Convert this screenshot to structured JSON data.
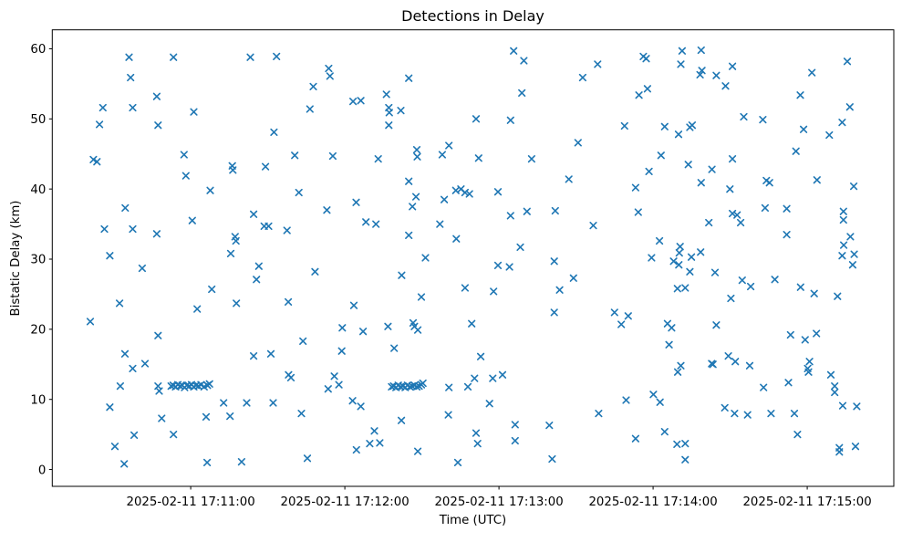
{
  "chart_data": {
    "type": "scatter",
    "title": "Detections in Delay",
    "xlabel": "Time (UTC)",
    "ylabel": "Bistatic Delay (km)",
    "marker": "x",
    "marker_color": "#1f77b4",
    "grid": false,
    "legend": "none",
    "x_time_origin": "2025-02-11 17:10:00",
    "xlim_seconds": [
      6.1,
      333.7
    ],
    "ylim": [
      -2.4,
      62.7
    ],
    "x_ticks": [
      {
        "seconds": 60,
        "label": "2025-02-11 17:11:00"
      },
      {
        "seconds": 120,
        "label": "2025-02-11 17:12:00"
      },
      {
        "seconds": 180,
        "label": "2025-02-11 17:13:00"
      },
      {
        "seconds": 240,
        "label": "2025-02-11 17:14:00"
      },
      {
        "seconds": 300,
        "label": "2025-02-11 17:15:00"
      }
    ],
    "y_ticks": [
      0,
      10,
      20,
      30,
      40,
      50,
      60
    ],
    "points_format": [
      "seconds_after_17:10:00_UTC",
      "bistatic_delay_km"
    ],
    "points": [
      [
        36.0,
        58.8
      ],
      [
        53.3,
        58.8
      ],
      [
        36.6,
        55.9
      ],
      [
        46.8,
        53.2
      ],
      [
        25.8,
        51.6
      ],
      [
        37.4,
        51.6
      ],
      [
        61.2,
        51.0
      ],
      [
        24.5,
        49.2
      ],
      [
        47.3,
        49.1
      ],
      [
        22.1,
        44.2
      ],
      [
        23.5,
        43.9
      ],
      [
        57.4,
        44.9
      ],
      [
        58.1,
        41.9
      ],
      [
        34.5,
        37.3
      ],
      [
        60.6,
        35.5
      ],
      [
        26.4,
        34.3
      ],
      [
        37.4,
        34.3
      ],
      [
        46.8,
        33.6
      ],
      [
        28.5,
        30.5
      ],
      [
        41.1,
        28.7
      ],
      [
        32.3,
        23.7
      ],
      [
        20.9,
        21.1
      ],
      [
        47.3,
        19.1
      ],
      [
        34.4,
        16.5
      ],
      [
        42.2,
        15.1
      ],
      [
        37.4,
        14.4
      ],
      [
        32.6,
        11.9
      ],
      [
        47.3,
        11.9
      ],
      [
        47.7,
        11.2
      ],
      [
        28.5,
        8.9
      ],
      [
        48.7,
        7.3
      ],
      [
        38.0,
        4.9
      ],
      [
        53.3,
        5.0
      ],
      [
        30.5,
        3.3
      ],
      [
        34.1,
        0.8
      ],
      [
        52.4,
        11.9
      ],
      [
        53.2,
        12.0
      ],
      [
        54.1,
        11.8
      ],
      [
        55.0,
        12.1
      ],
      [
        55.9,
        11.9
      ],
      [
        56.7,
        12.0
      ],
      [
        57.6,
        11.7
      ],
      [
        58.5,
        12.0
      ],
      [
        59.4,
        11.9
      ],
      [
        60.3,
        12.1
      ],
      [
        61.2,
        11.8
      ],
      [
        62.1,
        12.0
      ],
      [
        63.0,
        11.9
      ],
      [
        64.0,
        12.1
      ],
      [
        65.2,
        11.8
      ],
      [
        66.5,
        12.0
      ],
      [
        67.3,
        12.2
      ],
      [
        83.2,
        58.8
      ],
      [
        93.4,
        58.9
      ],
      [
        113.7,
        57.2
      ],
      [
        114.2,
        56.1
      ],
      [
        107.7,
        54.6
      ],
      [
        106.4,
        51.4
      ],
      [
        92.4,
        48.1
      ],
      [
        100.5,
        44.8
      ],
      [
        115.3,
        44.7
      ],
      [
        76.2,
        43.3
      ],
      [
        76.4,
        42.7
      ],
      [
        89.1,
        43.2
      ],
      [
        67.6,
        39.8
      ],
      [
        102.1,
        39.5
      ],
      [
        113.0,
        37.0
      ],
      [
        84.5,
        36.4
      ],
      [
        88.6,
        34.7
      ],
      [
        90.3,
        34.7
      ],
      [
        97.5,
        34.1
      ],
      [
        77.3,
        33.2
      ],
      [
        77.6,
        32.6
      ],
      [
        75.6,
        30.8
      ],
      [
        86.5,
        29.0
      ],
      [
        108.4,
        28.2
      ],
      [
        85.6,
        27.1
      ],
      [
        68.2,
        25.7
      ],
      [
        62.5,
        22.9
      ],
      [
        77.8,
        23.7
      ],
      [
        98.0,
        23.9
      ],
      [
        103.7,
        18.3
      ],
      [
        84.5,
        16.2
      ],
      [
        91.2,
        16.5
      ],
      [
        98.1,
        13.5
      ],
      [
        99.0,
        13.1
      ],
      [
        115.9,
        13.3
      ],
      [
        117.7,
        12.1
      ],
      [
        113.5,
        11.5
      ],
      [
        72.8,
        9.5
      ],
      [
        81.8,
        9.5
      ],
      [
        92.1,
        9.5
      ],
      [
        66.0,
        7.5
      ],
      [
        75.3,
        7.6
      ],
      [
        103.1,
        8.0
      ],
      [
        66.4,
        1.0
      ],
      [
        79.8,
        1.1
      ],
      [
        105.4,
        1.6
      ],
      [
        144.9,
        55.8
      ],
      [
        123.2,
        52.5
      ],
      [
        126.2,
        52.6
      ],
      [
        136.2,
        53.5
      ],
      [
        137.1,
        51.6
      ],
      [
        137.3,
        50.9
      ],
      [
        141.8,
        51.2
      ],
      [
        171.1,
        50.0
      ],
      [
        137.1,
        49.1
      ],
      [
        148.0,
        45.6
      ],
      [
        148.2,
        44.6
      ],
      [
        160.5,
        46.2
      ],
      [
        157.9,
        44.9
      ],
      [
        133.0,
        44.3
      ],
      [
        172.1,
        44.4
      ],
      [
        144.9,
        41.1
      ],
      [
        147.7,
        38.9
      ],
      [
        146.3,
        37.5
      ],
      [
        124.4,
        38.1
      ],
      [
        158.7,
        38.5
      ],
      [
        163.2,
        39.8
      ],
      [
        165.2,
        40.0
      ],
      [
        166.8,
        39.5
      ],
      [
        168.5,
        39.3
      ],
      [
        128.2,
        35.3
      ],
      [
        132.1,
        35.0
      ],
      [
        157.0,
        35.0
      ],
      [
        144.9,
        33.4
      ],
      [
        163.4,
        32.9
      ],
      [
        151.4,
        30.2
      ],
      [
        142.1,
        27.7
      ],
      [
        166.8,
        25.9
      ],
      [
        149.8,
        24.6
      ],
      [
        123.5,
        23.4
      ],
      [
        119.0,
        20.2
      ],
      [
        127.1,
        19.7
      ],
      [
        136.8,
        20.4
      ],
      [
        146.6,
        20.9
      ],
      [
        147.1,
        20.4
      ],
      [
        148.4,
        19.9
      ],
      [
        169.4,
        20.8
      ],
      [
        139.2,
        17.3
      ],
      [
        172.9,
        16.1
      ],
      [
        118.8,
        16.9
      ],
      [
        160.5,
        11.7
      ],
      [
        167.9,
        11.8
      ],
      [
        170.5,
        13.0
      ],
      [
        123.0,
        9.8
      ],
      [
        126.2,
        9.0
      ],
      [
        142.0,
        7.0
      ],
      [
        160.3,
        7.8
      ],
      [
        131.5,
        5.5
      ],
      [
        129.7,
        3.7
      ],
      [
        133.6,
        3.8
      ],
      [
        124.5,
        2.8
      ],
      [
        148.4,
        2.6
      ],
      [
        171.1,
        5.2
      ],
      [
        171.7,
        3.7
      ],
      [
        164.0,
        1.0
      ],
      [
        138.2,
        11.8
      ],
      [
        139.0,
        11.9
      ],
      [
        139.9,
        11.7
      ],
      [
        140.8,
        12.0
      ],
      [
        141.7,
        11.8
      ],
      [
        142.6,
        11.9
      ],
      [
        143.5,
        11.7
      ],
      [
        144.4,
        12.0
      ],
      [
        145.3,
        11.8
      ],
      [
        146.2,
        11.9
      ],
      [
        147.1,
        12.0
      ],
      [
        148.0,
        11.8
      ],
      [
        148.9,
        11.9
      ],
      [
        149.8,
        12.1
      ],
      [
        150.4,
        12.3
      ],
      [
        185.7,
        59.7
      ],
      [
        189.7,
        58.3
      ],
      [
        218.4,
        57.8
      ],
      [
        212.6,
        55.9
      ],
      [
        188.9,
        53.7
      ],
      [
        184.5,
        49.8
      ],
      [
        228.9,
        49.0
      ],
      [
        210.8,
        46.6
      ],
      [
        192.7,
        44.3
      ],
      [
        207.2,
        41.4
      ],
      [
        179.6,
        39.6
      ],
      [
        190.9,
        36.8
      ],
      [
        184.5,
        36.2
      ],
      [
        201.9,
        36.9
      ],
      [
        216.7,
        34.8
      ],
      [
        188.3,
        31.7
      ],
      [
        179.6,
        29.1
      ],
      [
        184.1,
        28.9
      ],
      [
        201.5,
        29.7
      ],
      [
        209.0,
        27.3
      ],
      [
        177.9,
        25.4
      ],
      [
        203.6,
        25.6
      ],
      [
        201.5,
        22.4
      ],
      [
        225.0,
        22.4
      ],
      [
        230.3,
        21.9
      ],
      [
        227.6,
        20.7
      ],
      [
        177.6,
        13.0
      ],
      [
        181.4,
        13.5
      ],
      [
        176.3,
        9.4
      ],
      [
        229.5,
        9.9
      ],
      [
        218.8,
        8.0
      ],
      [
        186.3,
        6.4
      ],
      [
        199.6,
        6.3
      ],
      [
        186.3,
        4.1
      ],
      [
        200.7,
        1.5
      ],
      [
        251.3,
        59.7
      ],
      [
        258.7,
        59.8
      ],
      [
        236.2,
        58.9
      ],
      [
        237.3,
        58.6
      ],
      [
        250.8,
        57.8
      ],
      [
        259.0,
        56.9
      ],
      [
        258.3,
        56.3
      ],
      [
        264.6,
        56.2
      ],
      [
        270.9,
        57.5
      ],
      [
        268.2,
        54.7
      ],
      [
        237.8,
        54.3
      ],
      [
        234.5,
        53.4
      ],
      [
        275.3,
        50.3
      ],
      [
        282.7,
        49.9
      ],
      [
        244.5,
        48.9
      ],
      [
        254.3,
        48.8
      ],
      [
        255.2,
        49.1
      ],
      [
        249.9,
        47.8
      ],
      [
        243.1,
        44.8
      ],
      [
        270.9,
        44.3
      ],
      [
        253.7,
        43.5
      ],
      [
        238.4,
        42.5
      ],
      [
        262.9,
        42.8
      ],
      [
        258.7,
        40.9
      ],
      [
        269.9,
        40.0
      ],
      [
        233.2,
        40.2
      ],
      [
        284.1,
        41.2
      ],
      [
        285.3,
        40.9
      ],
      [
        283.6,
        37.3
      ],
      [
        234.2,
        36.7
      ],
      [
        270.9,
        36.5
      ],
      [
        272.7,
        36.3
      ],
      [
        274.1,
        35.2
      ],
      [
        261.7,
        35.2
      ],
      [
        242.5,
        32.6
      ],
      [
        239.4,
        30.2
      ],
      [
        250.2,
        30.9
      ],
      [
        248.0,
        29.7
      ],
      [
        250.0,
        29.2
      ],
      [
        254.9,
        30.3
      ],
      [
        258.5,
        31.0
      ],
      [
        250.5,
        31.8
      ],
      [
        254.3,
        28.2
      ],
      [
        264.1,
        28.1
      ],
      [
        274.7,
        27.0
      ],
      [
        278.0,
        26.1
      ],
      [
        287.4,
        27.1
      ],
      [
        249.5,
        25.8
      ],
      [
        252.5,
        25.9
      ],
      [
        270.3,
        24.4
      ],
      [
        245.6,
        20.8
      ],
      [
        247.2,
        20.2
      ],
      [
        264.6,
        20.6
      ],
      [
        246.2,
        17.8
      ],
      [
        269.3,
        16.2
      ],
      [
        272.0,
        15.4
      ],
      [
        262.8,
        15.1
      ],
      [
        263.3,
        15.0
      ],
      [
        277.6,
        14.8
      ],
      [
        250.8,
        14.8
      ],
      [
        249.6,
        13.9
      ],
      [
        283.0,
        11.7
      ],
      [
        240.1,
        10.7
      ],
      [
        242.7,
        9.6
      ],
      [
        267.9,
        8.8
      ],
      [
        271.7,
        8.0
      ],
      [
        276.8,
        7.8
      ],
      [
        285.9,
        8.0
      ],
      [
        244.5,
        5.4
      ],
      [
        233.2,
        4.4
      ],
      [
        249.3,
        3.6
      ],
      [
        252.5,
        3.7
      ],
      [
        252.5,
        1.4
      ],
      [
        315.6,
        58.2
      ],
      [
        301.8,
        56.6
      ],
      [
        297.3,
        53.4
      ],
      [
        316.6,
        51.7
      ],
      [
        313.6,
        49.5
      ],
      [
        298.6,
        48.5
      ],
      [
        308.6,
        47.7
      ],
      [
        295.6,
        45.4
      ],
      [
        303.8,
        41.3
      ],
      [
        318.1,
        40.4
      ],
      [
        292.0,
        37.2
      ],
      [
        314.1,
        36.8
      ],
      [
        314.1,
        35.6
      ],
      [
        292.0,
        33.5
      ],
      [
        316.8,
        33.2
      ],
      [
        314.2,
        32.0
      ],
      [
        318.3,
        30.7
      ],
      [
        313.6,
        30.5
      ],
      [
        317.7,
        29.2
      ],
      [
        297.4,
        26.0
      ],
      [
        302.7,
        25.1
      ],
      [
        311.8,
        24.7
      ],
      [
        293.5,
        19.2
      ],
      [
        299.2,
        18.5
      ],
      [
        303.6,
        19.4
      ],
      [
        300.9,
        15.4
      ],
      [
        300.2,
        14.4
      ],
      [
        300.5,
        13.9
      ],
      [
        309.2,
        13.5
      ],
      [
        292.7,
        12.4
      ],
      [
        310.7,
        11.9
      ],
      [
        310.7,
        11.0
      ],
      [
        295.0,
        8.0
      ],
      [
        296.2,
        5.0
      ],
      [
        312.5,
        3.1
      ],
      [
        312.5,
        2.5
      ],
      [
        318.8,
        3.3
      ],
      [
        313.8,
        9.1
      ],
      [
        319.3,
        9.0
      ]
    ]
  }
}
